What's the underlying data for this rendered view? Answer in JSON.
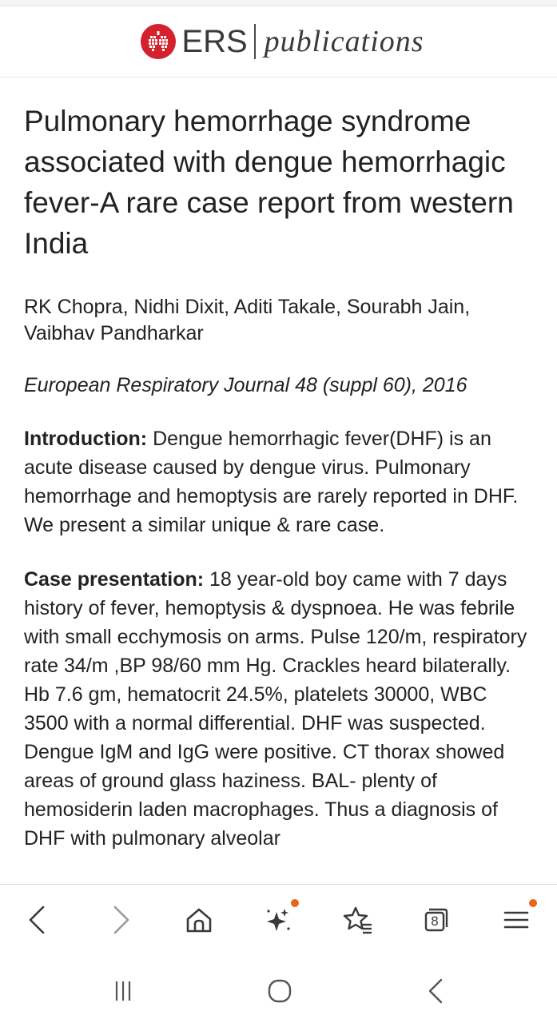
{
  "header": {
    "logo_ers": "ERS",
    "logo_publications": "publications"
  },
  "article": {
    "title": "Pulmonary hemorrhage syndrome associated with dengue hemorrhagic fever-A rare case report from western India",
    "authors": "RK Chopra, Nidhi Dixit, Aditi Takale, Sourabh Jain, Vaibhav Pandharkar",
    "journal": "European Respiratory Journal 48 (suppl 60), 2016",
    "intro_label": "Introduction:",
    "intro_text": " Dengue hemorrhagic fever(DHF) is an acute disease caused by dengue virus. Pulmonary hemorrhage and hemoptysis are rarely reported in DHF. We present a similar unique & rare case.",
    "case_label": "Case presentation:",
    "case_text": " 18 year-old boy came with 7 days history of fever, hemoptysis & dyspnoea. He was febrile with small ecchymosis on arms. Pulse 120/m, respiratory rate 34/m ,BP 98/60 mm Hg. Crackles heard bilaterally. Hb 7.6 gm, hematocrit 24.5%, platelets 30000, WBC 3500 with a normal differential. DHF was suspected. Dengue IgM and IgG were positive. CT thorax showed areas of ground glass haziness. BAL- plenty of hemosiderin laden macrophages. Thus a diagnosis of DHF with pulmonary alveolar"
  },
  "browser_toolbar": {
    "tab_count": "8",
    "icons": [
      "back-icon",
      "forward-icon",
      "home-icon",
      "sparkle-icon",
      "bookmark-star-icon",
      "tabs-icon",
      "menu-icon"
    ],
    "badge_color": "#e9631d"
  },
  "system_nav": {
    "icons": [
      "recent-apps-icon",
      "home-circle-icon",
      "back-chevron-icon"
    ]
  },
  "colors": {
    "brand_red": "#d3212d",
    "text": "#222222"
  }
}
